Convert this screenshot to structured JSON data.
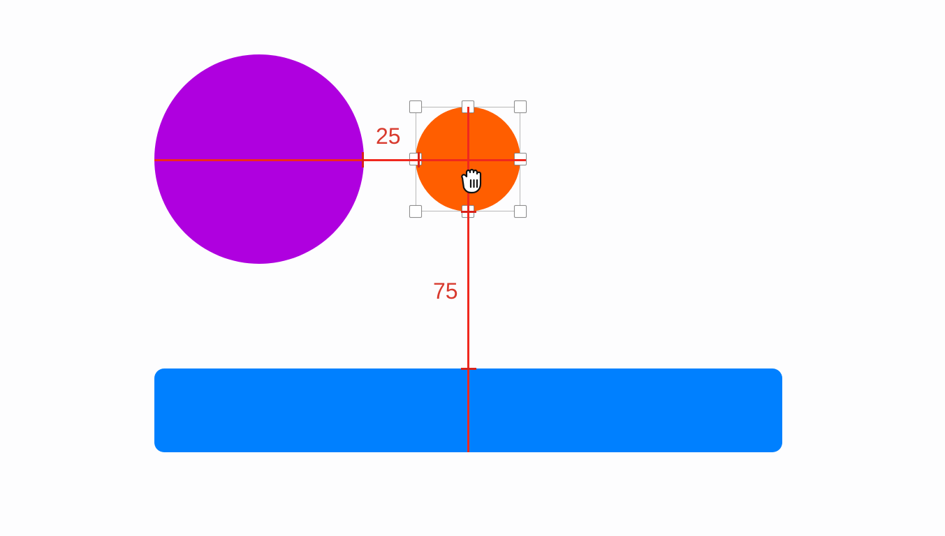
{
  "canvas": {
    "shapes": [
      {
        "name": "purple-circle",
        "kind": "circle",
        "color": "#af00df"
      },
      {
        "name": "orange-circle",
        "kind": "circle",
        "color": "#ff5e00",
        "selected": true
      },
      {
        "name": "blue-rectangle",
        "kind": "rounded-rectangle",
        "color": "#0080ff"
      }
    ],
    "guide_color": "#f0281e"
  },
  "measurements": {
    "horizontal_distance": "25",
    "vertical_distance": "75"
  },
  "cursor": {
    "icon": "closed-hand-drag-cursor"
  }
}
